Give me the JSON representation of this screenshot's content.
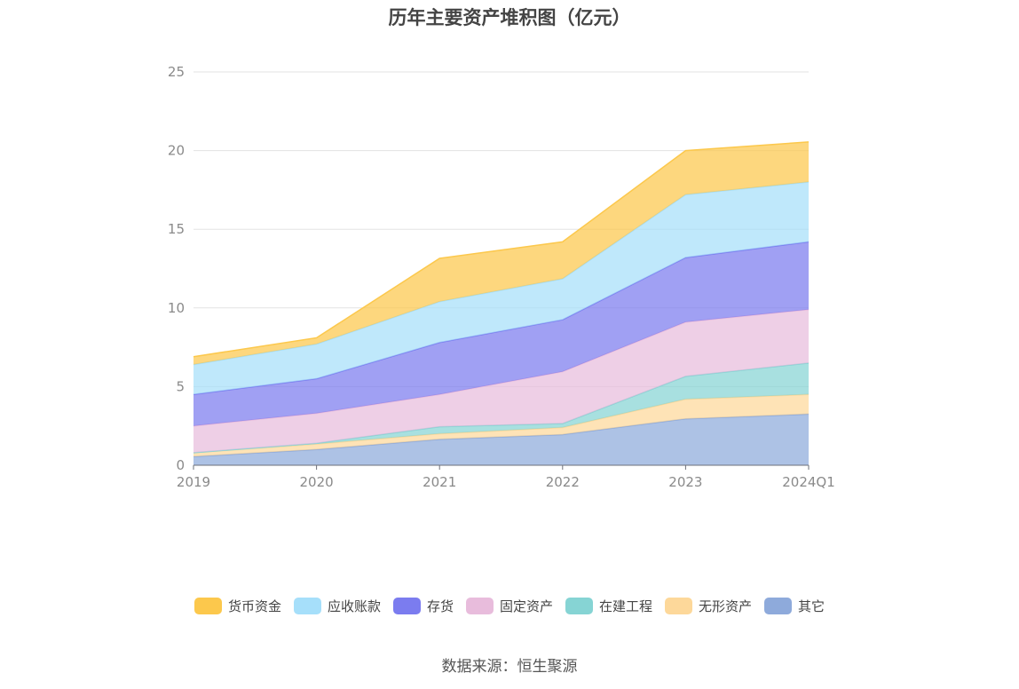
{
  "chart_data": {
    "type": "area",
    "stacked": true,
    "title": "历年主要资产堆积图（亿元）",
    "categories": [
      "2019",
      "2020",
      "2021",
      "2022",
      "2023",
      "2024Q1"
    ],
    "ylim": [
      0,
      25
    ],
    "yticks": [
      0,
      5,
      10,
      15,
      20,
      25
    ],
    "grid": true,
    "legend_position": "bottom",
    "series": [
      {
        "name": "其它",
        "color": "#8eaadb",
        "values": [
          0.55,
          1.0,
          1.65,
          1.95,
          2.95,
          3.25
        ]
      },
      {
        "name": "无形资产",
        "color": "#fdd89a",
        "values": [
          0.25,
          0.35,
          0.35,
          0.45,
          1.25,
          1.25
        ]
      },
      {
        "name": "在建工程",
        "color": "#86d4d4",
        "values": [
          0.0,
          0.05,
          0.45,
          0.25,
          1.45,
          2.0
        ]
      },
      {
        "name": "固定资产",
        "color": "#e8bcdc",
        "values": [
          1.7,
          1.9,
          2.05,
          3.3,
          3.45,
          3.4
        ]
      },
      {
        "name": "存货",
        "color": "#7b7cef",
        "values": [
          2.0,
          2.2,
          3.3,
          3.3,
          4.1,
          4.3
        ]
      },
      {
        "name": "应收账款",
        "color": "#a6dffa",
        "values": [
          1.9,
          2.2,
          2.6,
          2.6,
          4.0,
          3.8
        ]
      },
      {
        "name": "货币资金",
        "color": "#fcc84c",
        "values": [
          0.5,
          0.4,
          2.75,
          2.35,
          2.8,
          2.55
        ]
      }
    ]
  },
  "legend_order": [
    "货币资金",
    "应收账款",
    "存货",
    "固定资产",
    "在建工程",
    "无形资产",
    "其它"
  ],
  "source_text": "数据来源：恒生聚源"
}
